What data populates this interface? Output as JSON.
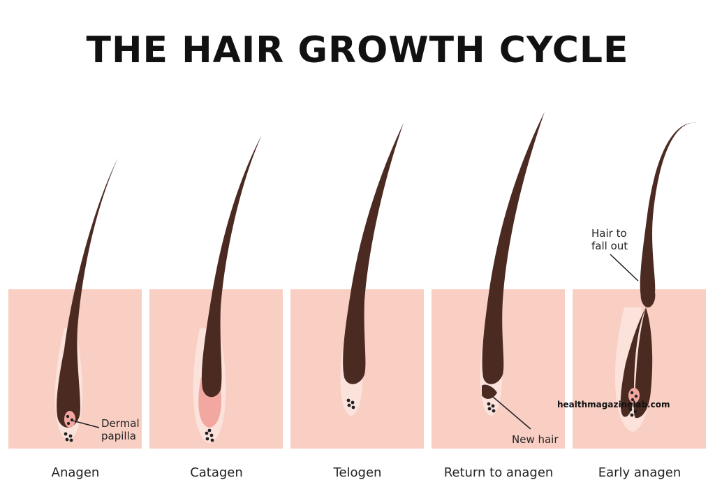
{
  "title": "THE HAIR GROWTH CYCLE",
  "stages": [
    {
      "label": "Anagen"
    },
    {
      "label": "Catagen"
    },
    {
      "label": "Telogen"
    },
    {
      "label": "Return to anagen"
    },
    {
      "label": "Early anagen"
    }
  ],
  "annotations": {
    "dermal_papilla_line1": "Dermal",
    "dermal_papilla_line2": "papilla",
    "new_hair": "New hair",
    "hair_to_fall_out_line1": "Hair to",
    "hair_to_fall_out_line2": "fall out"
  },
  "watermark": "healthmagazinelab.com",
  "colors": {
    "skin": "#f9cfc4",
    "follicle_sheath": "#fbe3dc",
    "hair": "#4b2a22",
    "bulb_pink": "#f2a8a0",
    "text": "#222222"
  }
}
